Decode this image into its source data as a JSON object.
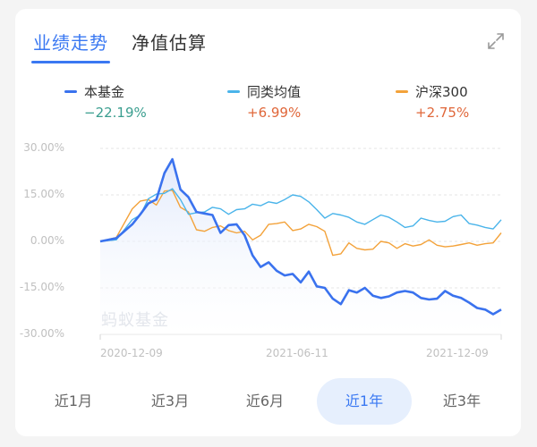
{
  "tabs": [
    {
      "label": "业绩走势",
      "active": true
    },
    {
      "label": "净值估算",
      "active": false
    }
  ],
  "expand_icon": "expand-arrows-icon",
  "legend": [
    {
      "name": "本基金",
      "value": "−22.19%",
      "color": "#3a72ee",
      "value_color": "#3a9e8f"
    },
    {
      "name": "同类均值",
      "value": "+6.99%",
      "color": "#4ab4ea",
      "value_color": "#e0673a"
    },
    {
      "name": "沪深300",
      "value": "+2.75%",
      "color": "#f3a23a",
      "value_color": "#e0673a"
    }
  ],
  "watermark": "蚂蚁基金",
  "ranges": [
    {
      "label": "近1月",
      "active": false
    },
    {
      "label": "近3月",
      "active": false
    },
    {
      "label": "近6月",
      "active": false
    },
    {
      "label": "近1年",
      "active": true
    },
    {
      "label": "近3年",
      "active": false
    }
  ],
  "chart_data": {
    "type": "line",
    "title": "业绩走势",
    "xlabel": "",
    "ylabel": "",
    "ylim": [
      -30,
      30
    ],
    "yticks": [
      "30.00%",
      "15.00%",
      "0.00%",
      "-15.00%",
      "-30.00%"
    ],
    "xticks": [
      "2020-12-09",
      "2021-06-11",
      "2021-12-09"
    ],
    "grid": true,
    "legend_position": "top",
    "x": [
      0,
      0.04,
      0.08,
      0.1,
      0.12,
      0.14,
      0.16,
      0.18,
      0.2,
      0.22,
      0.24,
      0.26,
      0.28,
      0.3,
      0.32,
      0.34,
      0.36,
      0.38,
      0.4,
      0.42,
      0.44,
      0.46,
      0.48,
      0.5,
      0.52,
      0.54,
      0.56,
      0.58,
      0.6,
      0.62,
      0.64,
      0.66,
      0.68,
      0.7,
      0.72,
      0.74,
      0.76,
      0.78,
      0.8,
      0.82,
      0.84,
      0.86,
      0.88,
      0.9,
      0.92,
      0.94,
      0.96,
      0.98,
      1.0
    ],
    "series": [
      {
        "name": "本基金",
        "values": [
          0,
          1,
          5,
          9,
          12,
          14,
          22,
          26,
          17,
          14,
          10,
          9,
          8,
          3,
          5,
          6,
          2,
          -5,
          -8,
          -7,
          -9,
          -11,
          -11,
          -13,
          -10,
          -14,
          -15,
          -19,
          -20,
          -16,
          -16,
          -15,
          -18,
          -18,
          -18,
          -16,
          -16,
          -17,
          -18,
          -19,
          -18,
          -16,
          -18,
          -18,
          -20,
          -21,
          -22,
          -24,
          -22
        ]
      },
      {
        "name": "同类均值",
        "values": [
          0,
          1,
          7,
          8,
          14,
          15,
          16,
          17,
          13,
          9,
          9,
          10,
          11,
          10,
          9,
          10,
          11,
          12,
          11,
          13,
          12,
          14,
          15,
          14,
          13,
          10,
          8,
          9,
          8,
          8,
          6,
          6,
          7,
          8,
          8,
          6,
          5,
          5,
          7,
          7,
          6,
          7,
          8,
          8,
          6,
          5,
          5,
          4,
          6.99
        ]
      },
      {
        "name": "沪深300",
        "values": [
          0,
          1,
          11,
          13,
          13,
          12,
          16,
          17,
          11,
          9,
          4,
          3,
          5,
          5,
          3,
          3,
          3,
          1,
          2,
          5,
          6,
          6,
          4,
          4,
          5,
          5,
          3,
          -4,
          -4,
          -1,
          -2,
          -3,
          -2,
          0,
          -1,
          -2,
          -1,
          -1,
          -1,
          0,
          -1,
          -2,
          -1,
          -1,
          -1,
          -1,
          -1,
          0,
          2.75
        ]
      }
    ]
  }
}
